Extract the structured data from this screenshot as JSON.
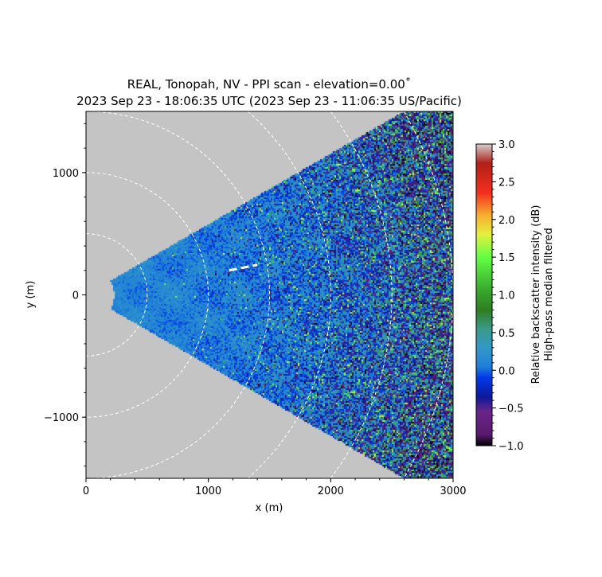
{
  "chart_data": {
    "type": "heatmap",
    "subtype": "PPI radar/lidar scan sector",
    "title": [
      "REAL, Tonopah, NV - PPI scan - elevation=0.00˚",
      "2023 Sep 23 - 18:06:35 UTC (2023 Sep 23 - 11:06:35 US/Pacific)"
    ],
    "xlabel": "x (m)",
    "ylabel": "y (m)",
    "xlim": [
      0,
      3000
    ],
    "ylim": [
      -1500,
      1500
    ],
    "xticks": [
      0,
      1000,
      2000,
      3000
    ],
    "xtick_labels": [
      "0",
      "1000",
      "2000",
      "3000"
    ],
    "yticks": [
      -1000,
      0,
      1000
    ],
    "ytick_labels": [
      "−1000",
      "0",
      "1000"
    ],
    "scan": {
      "azimuth_range_deg": [
        -30,
        30
      ],
      "min_range_m": 230,
      "max_range_m": 3500
    },
    "range_rings_m": [
      500,
      1000,
      1500,
      2000,
      2500,
      3000
    ],
    "marker_segment": {
      "x": [
        1170,
        1400
      ],
      "y": [
        200,
        245
      ]
    },
    "background_color": "#c4c4c4",
    "colorbar": {
      "label": [
        "Relative backscatter intensity (dB)",
        "High-pass median filtered"
      ],
      "range": [
        -1.0,
        3.0
      ],
      "ticks": [
        -1.0,
        -0.5,
        0.0,
        0.5,
        1.0,
        1.5,
        2.0,
        2.5,
        3.0
      ],
      "tick_labels": [
        "−1.0",
        "−0.5",
        "0.0",
        "0.5",
        "1.0",
        "1.5",
        "2.0",
        "2.5",
        "3.0"
      ],
      "colors": [
        [
          -1.0,
          "#000000"
        ],
        [
          -0.85,
          "#5a1a6e"
        ],
        [
          -0.55,
          "#6a2488"
        ],
        [
          -0.35,
          "#0c1a9a"
        ],
        [
          -0.1,
          "#0038e8"
        ],
        [
          0.05,
          "#2080d8"
        ],
        [
          0.3,
          "#3298c8"
        ],
        [
          0.55,
          "#3a9a88"
        ],
        [
          0.8,
          "#2e7d22"
        ],
        [
          1.1,
          "#3cae30"
        ],
        [
          1.5,
          "#62ff44"
        ],
        [
          1.8,
          "#e2f040"
        ],
        [
          2.05,
          "#f6b030"
        ],
        [
          2.35,
          "#f43020"
        ],
        [
          2.75,
          "#b02018"
        ],
        [
          3.0,
          "#d6d0d0"
        ]
      ]
    }
  }
}
